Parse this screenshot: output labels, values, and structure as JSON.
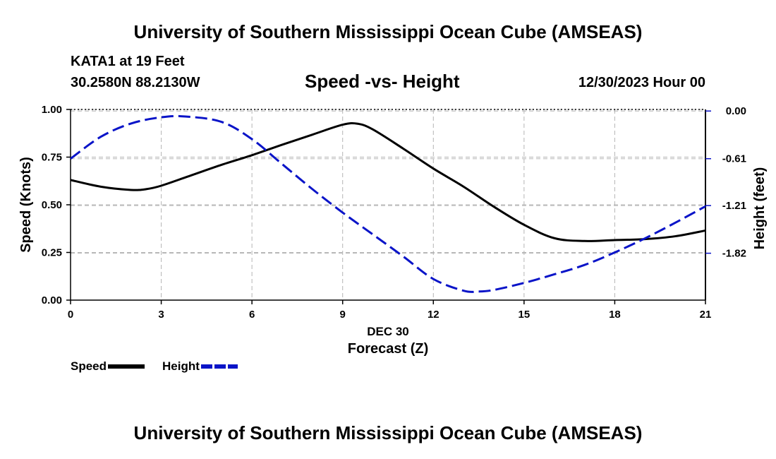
{
  "header": {
    "title": "University of Southern Mississippi Ocean Cube (AMSEAS)",
    "station": "KATA1 at 19 Feet",
    "coords": "30.2580N  88.2130W",
    "subtitle": "Speed -vs- Height",
    "datetime": "12/30/2023 Hour 00"
  },
  "footer": {
    "title": "University of Southern Mississippi Ocean Cube (AMSEAS)"
  },
  "chart_data": {
    "type": "line",
    "title": "Speed -vs- Height",
    "xlabel": "Forecast (Z)",
    "xdate_label": "DEC 30",
    "ylabel": "Speed (Knots)",
    "y2label": "Height (feet)",
    "xlim": [
      0,
      21
    ],
    "ylim": [
      0,
      1
    ],
    "y2lim": [
      -2.42,
      0.02
    ],
    "x_ticks": [
      0,
      3,
      6,
      9,
      12,
      15,
      18,
      21
    ],
    "x_tick_labels": [
      "0",
      "3",
      "6",
      "9",
      "12",
      "15",
      "18",
      "21"
    ],
    "y_ticks": [
      0,
      0.25,
      0.5,
      0.75,
      1.0
    ],
    "y_tick_labels": [
      "0.00",
      "0.25",
      "0.50",
      "0.75",
      "1.00"
    ],
    "y2_ticks": [
      0.0,
      -0.61,
      -1.21,
      -1.82
    ],
    "y2_tick_labels": [
      "0.00",
      "-0.61",
      "-1.21",
      "-1.82"
    ],
    "grid": true,
    "legend_position": "bottom-left",
    "series": [
      {
        "name": "Speed",
        "axis": "left",
        "color": "#000000",
        "style": "solid",
        "x": [
          0,
          1,
          2,
          2.5,
          3,
          4,
          5,
          6,
          7,
          8,
          9,
          9.5,
          10,
          11,
          12,
          13,
          14,
          15,
          16,
          17,
          18,
          19,
          20,
          21
        ],
        "values": [
          0.63,
          0.595,
          0.578,
          0.582,
          0.6,
          0.655,
          0.71,
          0.76,
          0.815,
          0.868,
          0.92,
          0.925,
          0.895,
          0.795,
          0.69,
          0.595,
          0.49,
          0.395,
          0.325,
          0.31,
          0.315,
          0.32,
          0.335,
          0.365
        ]
      },
      {
        "name": "Height",
        "axis": "right",
        "color": "#0a14c8",
        "style": "dashed",
        "x": [
          0,
          1,
          2,
          3,
          3.8,
          5,
          6,
          7,
          8,
          9,
          10,
          11,
          12,
          13,
          13.5,
          14,
          15,
          16,
          17,
          18,
          19,
          20,
          21
        ],
        "values": [
          -0.61,
          -0.33,
          -0.16,
          -0.08,
          -0.07,
          -0.14,
          -0.36,
          -0.68,
          -1.0,
          -1.3,
          -1.58,
          -1.86,
          -2.15,
          -2.3,
          -2.31,
          -2.29,
          -2.2,
          -2.09,
          -1.97,
          -1.81,
          -1.63,
          -1.43,
          -1.22
        ]
      }
    ]
  }
}
